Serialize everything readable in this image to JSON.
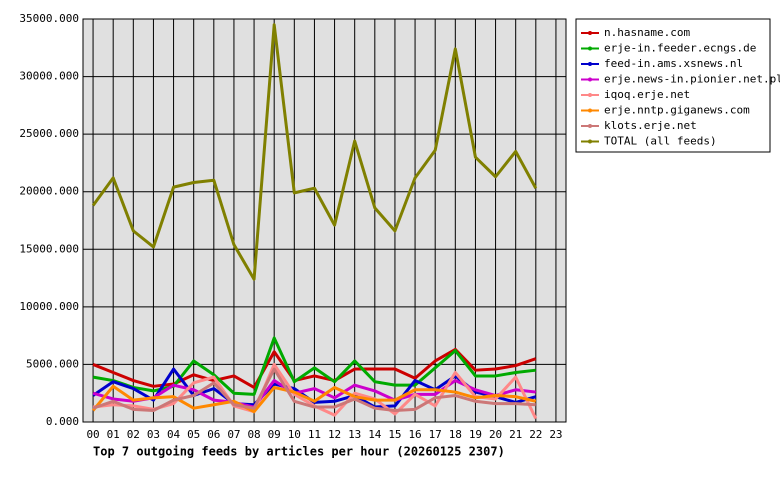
{
  "chart_data": {
    "type": "line",
    "title": "Top 7 outgoing feeds by articles per hour (20260125 2307)",
    "categories": [
      "00",
      "01",
      "02",
      "03",
      "04",
      "05",
      "06",
      "07",
      "08",
      "09",
      "10",
      "11",
      "12",
      "13",
      "14",
      "15",
      "16",
      "17",
      "18",
      "19",
      "20",
      "21",
      "22",
      "23"
    ],
    "ylim": [
      0,
      35000
    ],
    "yticks": [
      {
        "value": 0,
        "label": "0.000"
      },
      {
        "value": 5000,
        "label": "5000.000"
      },
      {
        "value": 10000,
        "label": "10000.000"
      },
      {
        "value": 15000,
        "label": "15000.000"
      },
      {
        "value": 20000,
        "label": "20000.000"
      },
      {
        "value": 25000,
        "label": "25000.000"
      },
      {
        "value": 30000,
        "label": "30000.000"
      },
      {
        "value": 35000,
        "label": "35000.000"
      }
    ],
    "grid": true,
    "legend": "right",
    "series": [
      {
        "name": "n.hasname.com",
        "color": "#cc0000",
        "values": [
          5000,
          4300,
          3600,
          3100,
          3300,
          4100,
          3600,
          4000,
          3000,
          6100,
          3600,
          4000,
          3600,
          4600,
          4600,
          4600,
          3800,
          5300,
          6300,
          4500,
          4600,
          4900,
          5500,
          null
        ]
      },
      {
        "name": "erje-in.feeder.ecngs.de",
        "color": "#00aa00",
        "values": [
          3900,
          3600,
          3000,
          2700,
          3100,
          5300,
          4100,
          2500,
          2400,
          7300,
          3500,
          4700,
          3500,
          5300,
          3500,
          3200,
          3200,
          4700,
          6200,
          4000,
          4000,
          4300,
          4500,
          null
        ]
      },
      {
        "name": "feed-in.ams.xsnews.nl",
        "color": "#0000cc",
        "values": [
          2300,
          3500,
          2900,
          1900,
          4600,
          2300,
          2900,
          1600,
          1500,
          3300,
          2900,
          1700,
          1800,
          2300,
          1300,
          1400,
          3600,
          2800,
          4000,
          2600,
          2200,
          1700,
          2200,
          null
        ]
      },
      {
        "name": "erje.news-in.pionier.net.pl",
        "color": "#cc00cc",
        "values": [
          2500,
          2000,
          1800,
          2100,
          3200,
          2800,
          1900,
          1700,
          1300,
          3600,
          2500,
          2900,
          2100,
          3200,
          2700,
          1900,
          2400,
          2400,
          3600,
          2800,
          2300,
          2800,
          2600,
          null
        ]
      },
      {
        "name": "iqoq.erje.net",
        "color": "#ff8888",
        "values": [
          1300,
          1500,
          1400,
          1100,
          1600,
          3400,
          3900,
          1400,
          900,
          5000,
          2400,
          1400,
          600,
          2500,
          2000,
          700,
          2400,
          1400,
          4300,
          2200,
          2000,
          3900,
          300,
          null
        ]
      },
      {
        "name": "erje.nntp.giganews.com",
        "color": "#ff8800",
        "values": [
          1000,
          3100,
          1900,
          2100,
          2200,
          1200,
          1500,
          1800,
          900,
          3000,
          2600,
          1800,
          3000,
          2200,
          1900,
          1900,
          2800,
          2800,
          2600,
          2100,
          2300,
          2200,
          1800,
          null
        ]
      },
      {
        "name": "klots.erje.net",
        "color": "#cc7777",
        "values": [
          1200,
          1800,
          1100,
          1000,
          1900,
          2300,
          3400,
          1500,
          1200,
          4600,
          1800,
          1300,
          1300,
          2000,
          1200,
          1000,
          1100,
          2100,
          2300,
          1800,
          1600,
          1600,
          1500,
          null
        ]
      },
      {
        "name": "TOTAL (all feeds)",
        "color": "#808000",
        "values": [
          18800,
          21200,
          16600,
          15200,
          20400,
          20800,
          21000,
          15400,
          12400,
          34500,
          19900,
          20300,
          17100,
          24400,
          18600,
          16600,
          21200,
          23600,
          32400,
          23000,
          21300,
          23500,
          20300,
          null
        ]
      }
    ]
  }
}
